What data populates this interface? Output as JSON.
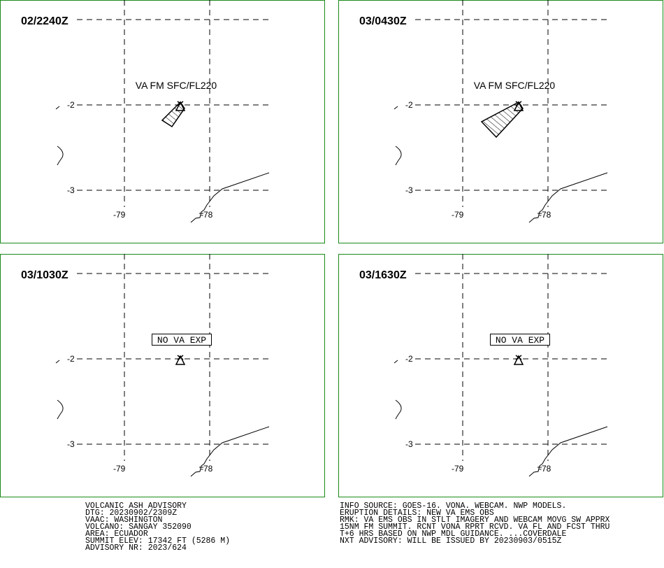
{
  "panels": [
    {
      "time": "02/2240Z",
      "annotation": "VA FM SFC/FL220",
      "lat_labels": [
        "-2",
        "-3"
      ],
      "lon_labels": [
        "-79",
        "-78"
      ]
    },
    {
      "time": "03/0430Z",
      "annotation": "VA FM SFC/FL220",
      "lat_labels": [
        "-2",
        "-3"
      ],
      "lon_labels": [
        "-79",
        "-78"
      ]
    },
    {
      "time": "03/1030Z",
      "annotation": "NO VA EXP",
      "lat_labels": [
        "-2",
        "-3"
      ],
      "lon_labels": [
        "-79",
        "-78"
      ]
    },
    {
      "time": "03/1630Z",
      "annotation": "NO VA EXP",
      "lat_labels": [
        "-2",
        "-3"
      ],
      "lon_labels": [
        "-79",
        "-78"
      ]
    }
  ],
  "footer_left": [
    "VOLCANIC ASH ADVISORY",
    "DTG: 20230902/2309Z",
    "VAAC: WASHINGTON",
    "VOLCANO: SANGAY 352090",
    "AREA: ECUADOR",
    "SUMMIT ELEV: 17342 FT (5286 M)",
    "ADVISORY NR: 2023/624"
  ],
  "footer_right": [
    "INFO SOURCE: GOES-16. VONA. WEBCAM. NWP MODELS.",
    "ERUPTION DETAILS: NEW VA EMS OBS",
    "RMK: VA EMS OBS IN STLT IMAGERY AND WEBCAM MOVG SW APPRX",
    "15NM FM SUMMIT. RCNT VONA RPRT RCVD. VA FL AND FCST THRU",
    "T+6 HRS BASED ON NWP MDL GUIDANCE. ...COVERDALE",
    "NXT ADVISORY: WILL BE ISSUED BY 20230903/0515Z"
  ]
}
